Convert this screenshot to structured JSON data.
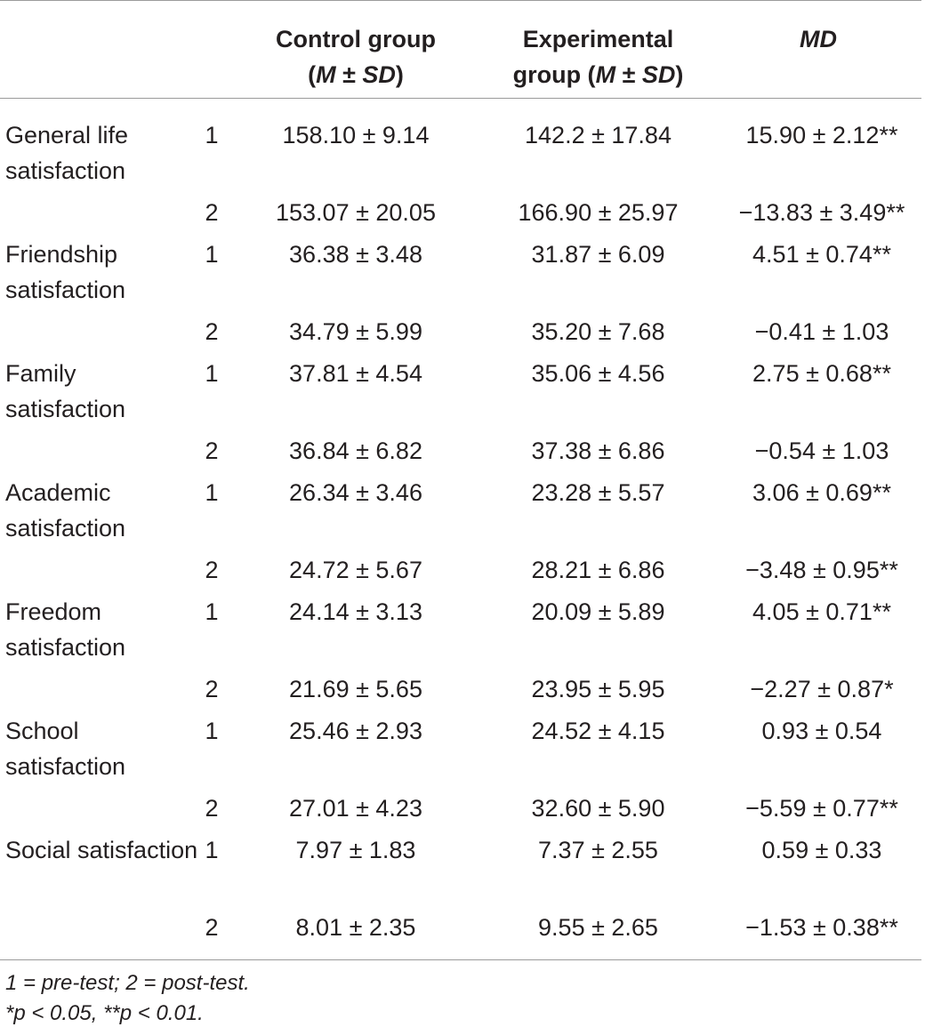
{
  "header": {
    "control_line1": "Control group",
    "control_line2_pre": "(",
    "control_line2_m": "M",
    "control_line2_pm": " ± ",
    "control_line2_sd": "SD",
    "control_line2_post": ")",
    "exp_line1": "Experimental",
    "exp_line2_pre": "group (",
    "exp_line2_m": "M",
    "exp_line2_pm": " ± ",
    "exp_line2_sd": "SD",
    "exp_line2_post": ")",
    "md": "MD"
  },
  "rows": [
    {
      "label": "General life satisfaction",
      "t1": {
        "time": "1",
        "control": "158.10 ± 9.14",
        "experimental": "142.2 ± 17.84",
        "md": "15.90 ± 2.12**"
      },
      "t2": {
        "time": "2",
        "control": "153.07 ± 20.05",
        "experimental": "166.90 ± 25.97",
        "md": "−13.83 ± 3.49**"
      }
    },
    {
      "label": "Friendship satisfaction",
      "t1": {
        "time": "1",
        "control": "36.38 ± 3.48",
        "experimental": "31.87 ± 6.09",
        "md": "4.51 ± 0.74**"
      },
      "t2": {
        "time": "2",
        "control": "34.79 ± 5.99",
        "experimental": "35.20 ± 7.68",
        "md": "−0.41 ± 1.03"
      }
    },
    {
      "label": "Family satisfaction",
      "t1": {
        "time": "1",
        "control": "37.81 ± 4.54",
        "experimental": "35.06 ± 4.56",
        "md": "2.75 ± 0.68**"
      },
      "t2": {
        "time": "2",
        "control": "36.84 ± 6.82",
        "experimental": "37.38 ± 6.86",
        "md": "−0.54 ± 1.03"
      }
    },
    {
      "label": "Academic satisfaction",
      "t1": {
        "time": "1",
        "control": "26.34 ± 3.46",
        "experimental": "23.28 ± 5.57",
        "md": "3.06 ± 0.69**"
      },
      "t2": {
        "time": "2",
        "control": "24.72 ± 5.67",
        "experimental": "28.21 ± 6.86",
        "md": "−3.48 ± 0.95**"
      }
    },
    {
      "label": "Freedom satisfaction",
      "t1": {
        "time": "1",
        "control": "24.14 ± 3.13",
        "experimental": "20.09 ± 5.89",
        "md": "4.05 ± 0.71**"
      },
      "t2": {
        "time": "2",
        "control": "21.69 ± 5.65",
        "experimental": "23.95 ± 5.95",
        "md": "−2.27 ± 0.87*"
      }
    },
    {
      "label": "School satisfaction",
      "t1": {
        "time": "1",
        "control": "25.46 ± 2.93",
        "experimental": "24.52 ± 4.15",
        "md": "0.93 ± 0.54"
      },
      "t2": {
        "time": "2",
        "control": "27.01 ± 4.23",
        "experimental": "32.60 ± 5.90",
        "md": "−5.59 ± 0.77**"
      }
    },
    {
      "label": "Social satisfaction",
      "t1": {
        "time": "1",
        "control": "7.97 ± 1.83",
        "experimental": "7.37 ± 2.55",
        "md": "0.59 ± 0.33"
      },
      "t2": {
        "time": "2",
        "control": "8.01 ± 2.35",
        "experimental": "9.55 ± 2.65",
        "md": "−1.53 ± 0.38**"
      }
    }
  ],
  "footnotes": {
    "line1": "1 = pre-test; 2 = post-test.",
    "line2": "*p < 0.05, **p < 0.01."
  }
}
